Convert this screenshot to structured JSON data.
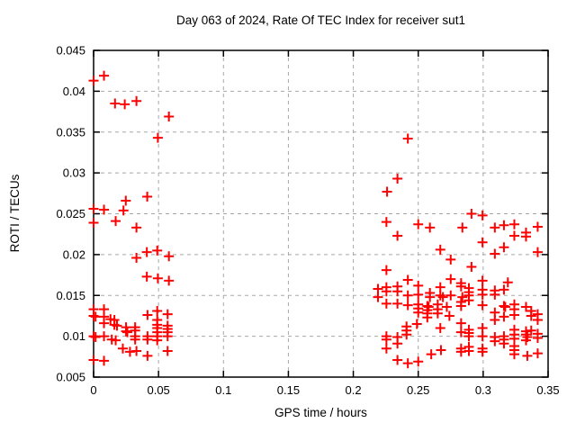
{
  "colors": {
    "marker": "#ff0000",
    "grid": "#a8a8a8",
    "axis": "#000000",
    "background": "#ffffff"
  },
  "chart_data": {
    "type": "scatter",
    "title": "Day 063 of 2024, Rate Of TEC Index for receiver sut1",
    "xlabel": "GPS time / hours",
    "ylabel": "ROTI / TECUs",
    "xlim": [
      0,
      0.35
    ],
    "ylim": [
      0.005,
      0.045
    ],
    "grid": true,
    "legend": "none",
    "marker": {
      "shape": "plus",
      "color": "#ff0000",
      "size": 11,
      "stroke_width": 2
    },
    "xticks": {
      "values": [
        0,
        0.05,
        0.1,
        0.15,
        0.2,
        0.25,
        0.3,
        0.35
      ],
      "labels": [
        "0",
        "0.05",
        "0.1",
        "0.15",
        "0.2",
        "0.25",
        "0.3",
        "0.35"
      ]
    },
    "yticks": {
      "values": [
        0.005,
        0.01,
        0.015,
        0.02,
        0.025,
        0.03,
        0.035,
        0.04,
        0.045
      ],
      "labels": [
        "0.005",
        "0.01",
        "0.015",
        "0.02",
        "0.025",
        "0.03",
        "0.035",
        "0.04",
        "0.045"
      ]
    },
    "series": [
      {
        "name": "ROTI",
        "points": [
          [
            0,
            0.0413
          ],
          [
            0.008,
            0.0419
          ],
          [
            0.0165,
            0.0385
          ],
          [
            0.024,
            0.0384
          ],
          [
            0.033,
            0.0388
          ],
          [
            0.058,
            0.0369
          ],
          [
            0.0495,
            0.0343
          ],
          [
            0.0413,
            0.0271
          ],
          [
            0.0248,
            0.0266
          ],
          [
            0,
            0.0256
          ],
          [
            0.008,
            0.0255
          ],
          [
            0.023,
            0.0254
          ],
          [
            0.017,
            0.0241
          ],
          [
            0,
            0.0239
          ],
          [
            0.033,
            0.0233
          ],
          [
            0.041,
            0.0203
          ],
          [
            0.049,
            0.0205
          ],
          [
            0.033,
            0.0196
          ],
          [
            0.058,
            0.0198
          ],
          [
            0.041,
            0.0173
          ],
          [
            0.0495,
            0.0171
          ],
          [
            0.058,
            0.0168
          ],
          [
            0,
            0.0133
          ],
          [
            0.008,
            0.0133
          ],
          [
            0,
            0.0125
          ],
          [
            0.0015,
            0.0124
          ],
          [
            0.008,
            0.0124
          ],
          [
            0.008,
            0.0116
          ],
          [
            0.013,
            0.0121
          ],
          [
            0.016,
            0.012
          ],
          [
            0.016,
            0.0114
          ],
          [
            0.018,
            0.0113
          ],
          [
            0.025,
            0.0111
          ],
          [
            0.025,
            0.0106
          ],
          [
            0.026,
            0.0105
          ],
          [
            0.0415,
            0.0126
          ],
          [
            0.049,
            0.0131
          ],
          [
            0.057,
            0.0127
          ],
          [
            0.049,
            0.012
          ],
          [
            0.032,
            0.0111
          ],
          [
            0.032,
            0.0107
          ],
          [
            0.032,
            0.01
          ],
          [
            0.032,
            0.0096
          ],
          [
            0.0415,
            0.01
          ],
          [
            0.0415,
            0.0096
          ],
          [
            0.049,
            0.0114
          ],
          [
            0.049,
            0.011
          ],
          [
            0.049,
            0.0105
          ],
          [
            0.049,
            0.01
          ],
          [
            0.049,
            0.0095
          ],
          [
            0.057,
            0.0113
          ],
          [
            0.057,
            0.0109
          ],
          [
            0.057,
            0.0105
          ],
          [
            0.057,
            0.01
          ],
          [
            0,
            0.01
          ],
          [
            0.0015,
            0.0099
          ],
          [
            0.008,
            0.01
          ],
          [
            0.014,
            0.0096
          ],
          [
            0.017,
            0.0095
          ],
          [
            0.0225,
            0.0085
          ],
          [
            0.028,
            0.0081
          ],
          [
            0.033,
            0.0082
          ],
          [
            0.0415,
            0.0076
          ],
          [
            0.057,
            0.0082
          ],
          [
            0,
            0.0071
          ],
          [
            0.008,
            0.007
          ],
          [
            0.242,
            0.0342
          ],
          [
            0.234,
            0.0293
          ],
          [
            0.226,
            0.0277
          ],
          [
            0.2255,
            0.024
          ],
          [
            0.25,
            0.0237
          ],
          [
            0.259,
            0.0233
          ],
          [
            0.284,
            0.0233
          ],
          [
            0.234,
            0.0223
          ],
          [
            0.267,
            0.0206
          ],
          [
            0.275,
            0.0194
          ],
          [
            0.2255,
            0.0181
          ],
          [
            0.242,
            0.0169
          ],
          [
            0.275,
            0.017
          ],
          [
            0.283,
            0.0165
          ],
          [
            0.283,
            0.0161
          ],
          [
            0.2255,
            0.016
          ],
          [
            0.2255,
            0.0155
          ],
          [
            0.234,
            0.0161
          ],
          [
            0.234,
            0.0155
          ],
          [
            0.242,
            0.015
          ],
          [
            0.25,
            0.0162
          ],
          [
            0.25,
            0.0151
          ],
          [
            0.259,
            0.0153
          ],
          [
            0.259,
            0.0148
          ],
          [
            0.267,
            0.016
          ],
          [
            0.267,
            0.015
          ],
          [
            0.269,
            0.0148
          ],
          [
            0.275,
            0.015
          ],
          [
            0.284,
            0.0148
          ],
          [
            0.219,
            0.0158
          ],
          [
            0.219,
            0.0148
          ],
          [
            0.291,
            0.025
          ],
          [
            0.2995,
            0.0248
          ],
          [
            0.309,
            0.0233
          ],
          [
            0.316,
            0.0236
          ],
          [
            0.324,
            0.0237
          ],
          [
            0.342,
            0.0234
          ],
          [
            0.324,
            0.0223
          ],
          [
            0.333,
            0.0227
          ],
          [
            0.333,
            0.0222
          ],
          [
            0.2995,
            0.0215
          ],
          [
            0.316,
            0.0209
          ],
          [
            0.309,
            0.0201
          ],
          [
            0.342,
            0.0203
          ],
          [
            0.291,
            0.0185
          ],
          [
            0.2995,
            0.0168
          ],
          [
            0.319,
            0.0166
          ],
          [
            0.289,
            0.0159
          ],
          [
            0.289,
            0.0154
          ],
          [
            0.289,
            0.015
          ],
          [
            0.2995,
            0.0157
          ],
          [
            0.2995,
            0.0151
          ],
          [
            0.309,
            0.0156
          ],
          [
            0.309,
            0.0151
          ],
          [
            0.316,
            0.0157
          ],
          [
            0.2255,
            0.014
          ],
          [
            0.234,
            0.014
          ],
          [
            0.242,
            0.0138
          ],
          [
            0.25,
            0.0139
          ],
          [
            0.25,
            0.0134
          ],
          [
            0.25,
            0.0129
          ],
          [
            0.257,
            0.0137
          ],
          [
            0.258,
            0.0136
          ],
          [
            0.257,
            0.0132
          ],
          [
            0.257,
            0.0128
          ],
          [
            0.257,
            0.0123
          ],
          [
            0.265,
            0.0139
          ],
          [
            0.265,
            0.0133
          ],
          [
            0.265,
            0.0128
          ],
          [
            0.272,
            0.0136
          ],
          [
            0.274,
            0.0125
          ],
          [
            0.283,
            0.0142
          ],
          [
            0.283,
            0.0137
          ],
          [
            0.241,
            0.0112
          ],
          [
            0.241,
            0.0107
          ],
          [
            0.241,
            0.0102
          ],
          [
            0.249,
            0.0115
          ],
          [
            0.267,
            0.011
          ],
          [
            0.2255,
            0.01
          ],
          [
            0.2255,
            0.0096
          ],
          [
            0.234,
            0.0099
          ],
          [
            0.234,
            0.0091
          ],
          [
            0.2255,
            0.0085
          ],
          [
            0.283,
            0.0116
          ],
          [
            0.283,
            0.0105
          ],
          [
            0.283,
            0.0085
          ],
          [
            0.283,
            0.0081
          ],
          [
            0.234,
            0.0071
          ],
          [
            0.242,
            0.0067
          ],
          [
            0.25,
            0.0069
          ],
          [
            0.26,
            0.0078
          ],
          [
            0.2675,
            0.0083
          ],
          [
            0.289,
            0.0144
          ],
          [
            0.2995,
            0.0138
          ],
          [
            0.309,
            0.0129
          ],
          [
            0.309,
            0.012
          ],
          [
            0.316,
            0.0137
          ],
          [
            0.317,
            0.0136
          ],
          [
            0.316,
            0.0124
          ],
          [
            0.324,
            0.0139
          ],
          [
            0.324,
            0.0133
          ],
          [
            0.324,
            0.0126
          ],
          [
            0.333,
            0.0136
          ],
          [
            0.337,
            0.0131
          ],
          [
            0.337,
            0.0125
          ],
          [
            0.342,
            0.0127
          ],
          [
            0.342,
            0.012
          ],
          [
            0.289,
            0.0108
          ],
          [
            0.289,
            0.0104
          ],
          [
            0.289,
            0.01
          ],
          [
            0.2995,
            0.011
          ],
          [
            0.2995,
            0.01
          ],
          [
            0.309,
            0.0099
          ],
          [
            0.309,
            0.0094
          ],
          [
            0.316,
            0.01
          ],
          [
            0.316,
            0.0096
          ],
          [
            0.316,
            0.0091
          ],
          [
            0.324,
            0.0108
          ],
          [
            0.324,
            0.0102
          ],
          [
            0.324,
            0.0097
          ],
          [
            0.333,
            0.0106
          ],
          [
            0.333,
            0.0102
          ],
          [
            0.334,
            0.0099
          ],
          [
            0.333,
            0.0095
          ],
          [
            0.337,
            0.0107
          ],
          [
            0.342,
            0.0103
          ],
          [
            0.342,
            0.0098
          ],
          [
            0.289,
            0.0087
          ],
          [
            0.289,
            0.0082
          ],
          [
            0.2995,
            0.0085
          ],
          [
            0.2995,
            0.0081
          ],
          [
            0.324,
            0.0088
          ],
          [
            0.324,
            0.0083
          ],
          [
            0.324,
            0.0078
          ],
          [
            0.334,
            0.0076
          ],
          [
            0.342,
            0.0079
          ]
        ]
      }
    ]
  }
}
